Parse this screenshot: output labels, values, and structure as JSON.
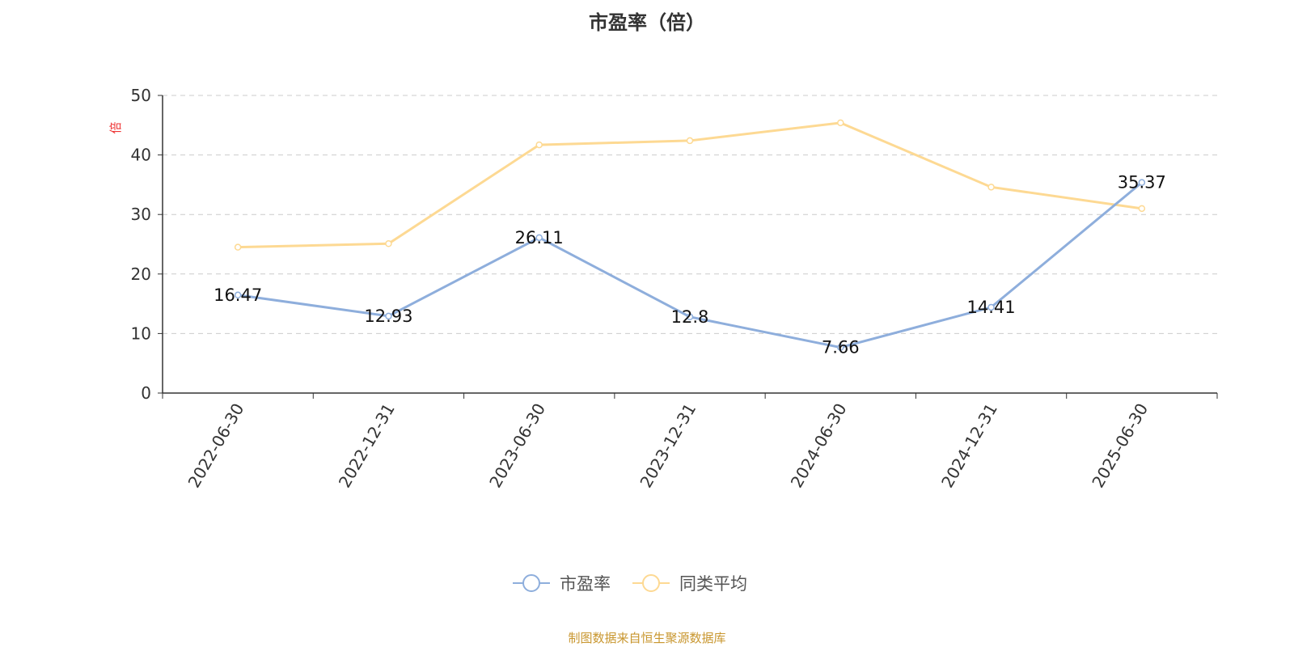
{
  "chart_data": {
    "type": "line",
    "title": "市盈率（倍）",
    "ylabel": "倍",
    "ylim": [
      0,
      50
    ],
    "yticks": [
      0,
      10,
      20,
      30,
      40,
      50
    ],
    "grid": "horizontal dashed",
    "legend_position": "bottom",
    "categories": [
      "2022-06-30",
      "2022-12-31",
      "2023-06-30",
      "2023-12-31",
      "2024-06-30",
      "2024-12-31",
      "2025-06-30"
    ],
    "series": [
      {
        "name": "市盈率",
        "color": "#8eaedc",
        "values": [
          16.47,
          12.93,
          26.11,
          12.8,
          7.66,
          14.41,
          35.37
        ],
        "labels": [
          "16.47",
          "12.93",
          "26.11",
          "12.8",
          "7.66",
          "14.41",
          "35.37"
        ]
      },
      {
        "name": "同类平均",
        "color": "#fdd993",
        "values": [
          24.5,
          25.1,
          41.7,
          42.4,
          45.4,
          34.6,
          31.0
        ]
      }
    ]
  },
  "footer": "制图数据来自恒生聚源数据库"
}
